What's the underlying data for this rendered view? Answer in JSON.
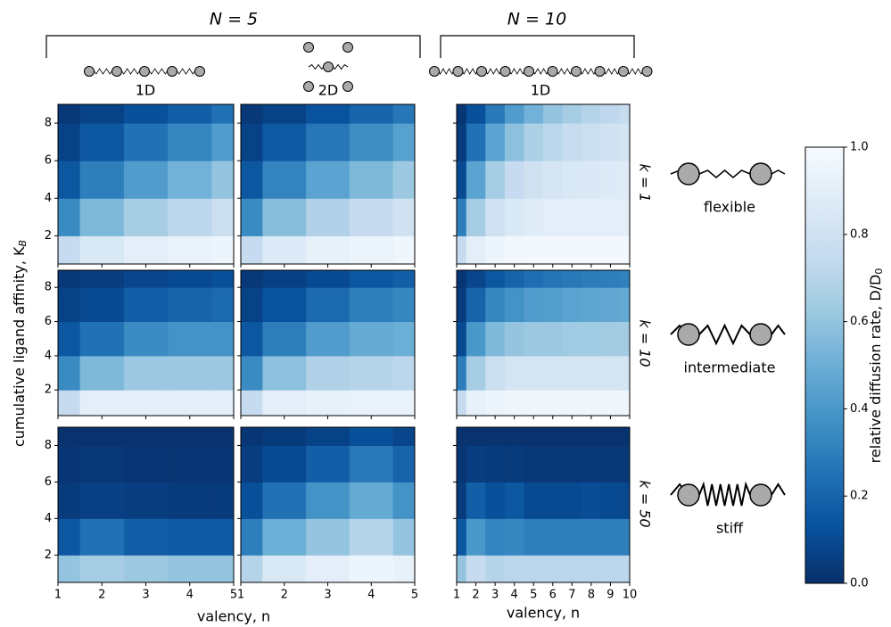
{
  "chart_data": {
    "type": "heatmap",
    "groups": [
      {
        "label": "N = 5"
      },
      {
        "label": "N = 10"
      }
    ],
    "columns": [
      {
        "label": "1D",
        "n": [
          1,
          2,
          3,
          4,
          5
        ],
        "xlim": [
          1,
          5
        ],
        "xticks": [
          1,
          2,
          3,
          4,
          5
        ]
      },
      {
        "label": "2D",
        "n": [
          1,
          2,
          3,
          4,
          5
        ],
        "xlim": [
          1,
          5
        ],
        "xticks": [
          1,
          2,
          3,
          4,
          5
        ]
      },
      {
        "label": "1D",
        "n": [
          1,
          2,
          3,
          4,
          5,
          6,
          7,
          8,
          9,
          10
        ],
        "xlim": [
          1,
          10
        ],
        "xticks": [
          1,
          2,
          3,
          4,
          5,
          6,
          7,
          8,
          9,
          10
        ]
      }
    ],
    "rows": [
      {
        "label": "k = 1",
        "stiffness": "flexible"
      },
      {
        "label": "k = 10",
        "stiffness": "intermediate"
      },
      {
        "label": "k = 50",
        "stiffness": "stiff"
      }
    ],
    "K": [
      1,
      3,
      5,
      7,
      9
    ],
    "ylim": [
      0.5,
      9
    ],
    "yticks": [
      2,
      4,
      6,
      8
    ],
    "x_label": "valency, n",
    "y_label": "cumulative ligand affinity, K",
    "y_label_sub": "B",
    "colorbar": {
      "label": "relative diffusion rate, D/D",
      "label_sub": "0",
      "clim": [
        0,
        1
      ],
      "ticks": [
        {
          "value": 0,
          "label": "0.0"
        },
        {
          "value": 0.2,
          "label": "0.2"
        },
        {
          "value": 0.4,
          "label": "0.4"
        },
        {
          "value": 0.6,
          "label": "0.6"
        },
        {
          "value": 0.8,
          "label": "0.8"
        },
        {
          "value": 1,
          "label": "1.0"
        }
      ],
      "colormap": [
        "#08306b",
        "#08519c",
        "#2171b5",
        "#4292c6",
        "#6baed6",
        "#9ecae1",
        "#c6dbef",
        "#deebf7",
        "#f7fbff"
      ]
    },
    "panels": [
      [
        {
          "values": [
            [
              0.75,
              0.85,
              0.9,
              0.93,
              0.95
            ],
            [
              0.35,
              0.55,
              0.65,
              0.72,
              0.78
            ],
            [
              0.15,
              0.3,
              0.42,
              0.52,
              0.6
            ],
            [
              0.07,
              0.15,
              0.25,
              0.33,
              0.42
            ],
            [
              0.03,
              0.07,
              0.12,
              0.18,
              0.25
            ]
          ]
        },
        {
          "values": [
            [
              0.75,
              0.87,
              0.92,
              0.94,
              0.96
            ],
            [
              0.35,
              0.57,
              0.68,
              0.75,
              0.8
            ],
            [
              0.15,
              0.32,
              0.45,
              0.55,
              0.62
            ],
            [
              0.07,
              0.16,
              0.27,
              0.36,
              0.44
            ],
            [
              0.03,
              0.07,
              0.13,
              0.2,
              0.27
            ]
          ]
        },
        {
          "values": [
            [
              0.75,
              0.9,
              0.95,
              0.97,
              0.98,
              0.98,
              0.98,
              0.98,
              0.98,
              0.98
            ],
            [
              0.3,
              0.65,
              0.8,
              0.85,
              0.88,
              0.9,
              0.9,
              0.9,
              0.9,
              0.9
            ],
            [
              0.1,
              0.45,
              0.65,
              0.75,
              0.8,
              0.83,
              0.85,
              0.86,
              0.87,
              0.88
            ],
            [
              0.04,
              0.25,
              0.45,
              0.58,
              0.67,
              0.72,
              0.76,
              0.78,
              0.8,
              0.82
            ],
            [
              0.02,
              0.12,
              0.28,
              0.42,
              0.52,
              0.6,
              0.65,
              0.7,
              0.73,
              0.76
            ]
          ]
        }
      ],
      [
        {
          "values": [
            [
              0.75,
              0.9,
              0.9,
              0.9,
              0.9
            ],
            [
              0.35,
              0.55,
              0.62,
              0.62,
              0.62
            ],
            [
              0.15,
              0.25,
              0.35,
              0.38,
              0.38
            ],
            [
              0.07,
              0.1,
              0.18,
              0.2,
              0.22
            ],
            [
              0.03,
              0.05,
              0.08,
              0.1,
              0.12
            ]
          ]
        },
        {
          "values": [
            [
              0.75,
              0.9,
              0.92,
              0.93,
              0.93
            ],
            [
              0.35,
              0.58,
              0.68,
              0.7,
              0.72
            ],
            [
              0.15,
              0.3,
              0.42,
              0.48,
              0.5
            ],
            [
              0.07,
              0.13,
              0.22,
              0.3,
              0.33
            ],
            [
              0.03,
              0.06,
              0.1,
              0.15,
              0.18
            ]
          ]
        },
        {
          "values": [
            [
              0.75,
              0.92,
              0.95,
              0.96,
              0.96,
              0.96,
              0.96,
              0.96,
              0.96,
              0.96
            ],
            [
              0.3,
              0.65,
              0.78,
              0.82,
              0.82,
              0.82,
              0.82,
              0.82,
              0.82,
              0.82
            ],
            [
              0.1,
              0.4,
              0.55,
              0.6,
              0.62,
              0.62,
              0.63,
              0.63,
              0.64,
              0.64
            ],
            [
              0.04,
              0.2,
              0.33,
              0.38,
              0.42,
              0.43,
              0.45,
              0.46,
              0.47,
              0.48
            ],
            [
              0.02,
              0.08,
              0.15,
              0.2,
              0.24,
              0.26,
              0.28,
              0.29,
              0.3,
              0.31
            ]
          ]
        }
      ],
      [
        {
          "values": [
            [
              0.6,
              0.65,
              0.62,
              0.6,
              0.6
            ],
            [
              0.15,
              0.25,
              0.18,
              0.16,
              0.16
            ],
            [
              0.04,
              0.06,
              0.05,
              0.04,
              0.04
            ],
            [
              0.02,
              0.03,
              0.02,
              0.02,
              0.02
            ],
            [
              0.01,
              0.01,
              0.01,
              0.01,
              0.01
            ]
          ]
        },
        {
          "values": [
            [
              0.7,
              0.85,
              0.9,
              0.95,
              0.92
            ],
            [
              0.3,
              0.5,
              0.6,
              0.7,
              0.6
            ],
            [
              0.12,
              0.25,
              0.38,
              0.48,
              0.38
            ],
            [
              0.05,
              0.1,
              0.18,
              0.28,
              0.2
            ],
            [
              0.02,
              0.04,
              0.07,
              0.12,
              0.08
            ]
          ]
        },
        {
          "values": [
            [
              0.6,
              0.75,
              0.7,
              0.72,
              0.72,
              0.72,
              0.72,
              0.72,
              0.72,
              0.72
            ],
            [
              0.15,
              0.4,
              0.32,
              0.33,
              0.3,
              0.3,
              0.3,
              0.3,
              0.3,
              0.3
            ],
            [
              0.04,
              0.18,
              0.12,
              0.15,
              0.1,
              0.1,
              0.1,
              0.11,
              0.1,
              0.09
            ],
            [
              0.02,
              0.05,
              0.04,
              0.04,
              0.03,
              0.03,
              0.03,
              0.03,
              0.03,
              0.03
            ],
            [
              0.01,
              0.01,
              0.01,
              0.01,
              0.01,
              0.01,
              0.01,
              0.01,
              0.01,
              0.01
            ]
          ]
        }
      ]
    ]
  }
}
